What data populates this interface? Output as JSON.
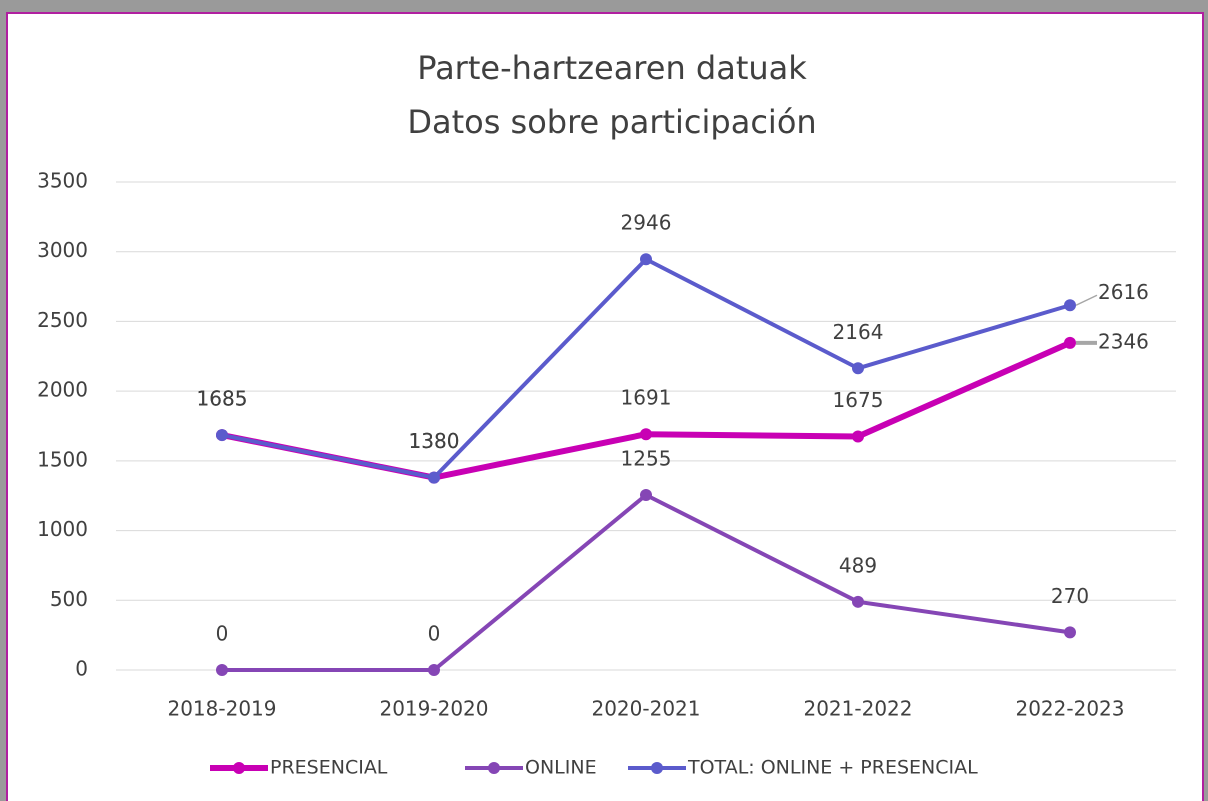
{
  "chart_data": {
    "type": "line",
    "title": [
      "Parte-hartzearen datuak",
      "Datos sobre participación"
    ],
    "categories": [
      "2018-2019",
      "2019-2020",
      "2020-2021",
      "2021-2022",
      "2022-2023"
    ],
    "series": [
      {
        "name": "PRESENCIAL",
        "color": "#c800b4",
        "values": [
          1685,
          1380,
          1691,
          1675,
          2346
        ]
      },
      {
        "name": "ONLINE",
        "color": "#8546b5",
        "values": [
          0,
          0,
          1255,
          489,
          270
        ]
      },
      {
        "name": "TOTAL: ONLINE + PRESENCIAL",
        "color": "#5b5bcc",
        "values": [
          1685,
          1380,
          2946,
          2164,
          2616
        ]
      }
    ],
    "ylim": [
      0,
      3500
    ],
    "yticks": [
      0,
      500,
      1000,
      1500,
      2000,
      2500,
      3000,
      3500
    ],
    "grid": true,
    "legend": "bottom"
  }
}
